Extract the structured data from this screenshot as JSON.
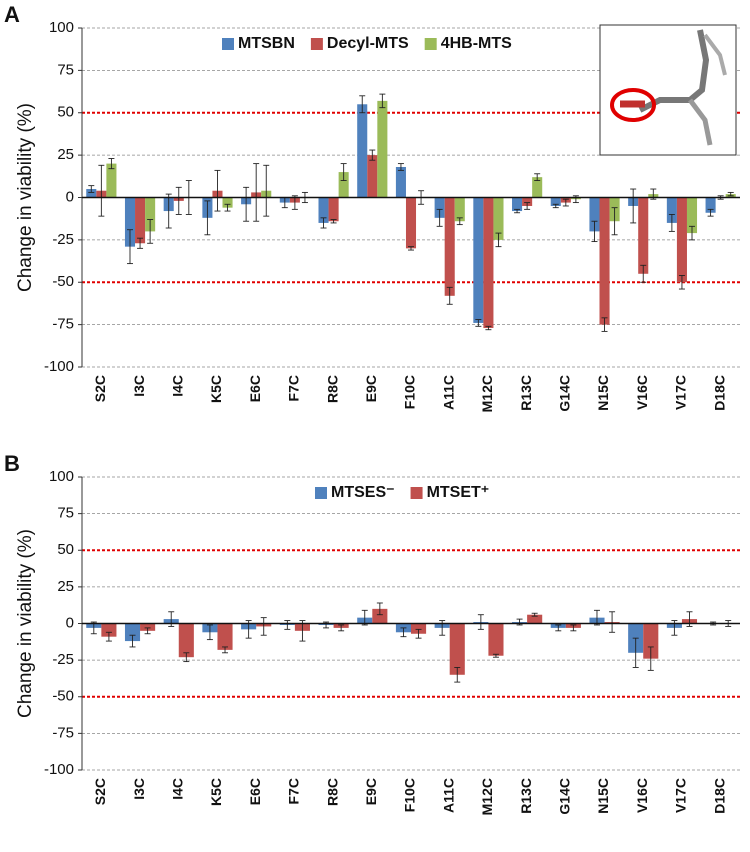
{
  "chart_data": [
    {
      "type": "bar",
      "panel_label": "A",
      "y_label": "Change in viability (%)",
      "legend": "top",
      "grid": true,
      "categories": [
        "S2C",
        "I3C",
        "I4C",
        "K5C",
        "E6C",
        "F7C",
        "R8C",
        "E9C",
        "F10C",
        "A11C",
        "M12C",
        "R13C",
        "G14C",
        "N15C",
        "V16C",
        "V17C",
        "D18C"
      ],
      "series": [
        {
          "name": "MTSBN",
          "color": "#4f81bd",
          "values": [
            5,
            -29,
            -8,
            -12,
            -4,
            -3,
            -15,
            55,
            18,
            -12,
            -74,
            -8,
            -5,
            -20,
            -5,
            -15,
            -9
          ],
          "errors": [
            2,
            10,
            10,
            10,
            10,
            3,
            3,
            5,
            2,
            5,
            2,
            1,
            1,
            6,
            10,
            5,
            2
          ]
        },
        {
          "name": "Decyl-MTS",
          "color": "#c0504d",
          "values": [
            4,
            -27,
            -2,
            4,
            3,
            -3,
            -14,
            25,
            -30,
            -58,
            -77,
            -5,
            -3,
            -75,
            -45,
            -50,
            0
          ],
          "errors": [
            15,
            3,
            8,
            12,
            17,
            4,
            1,
            3,
            1,
            5,
            1,
            2,
            2,
            4,
            5,
            4,
            1
          ]
        },
        {
          "name": "4HB-MTS",
          "color": "#9bbb59",
          "values": [
            20,
            -20,
            0,
            -6,
            4,
            0,
            15,
            57,
            0,
            -14,
            -25,
            12,
            -1,
            -14,
            2,
            -21,
            2
          ],
          "errors": [
            3,
            7,
            10,
            2,
            15,
            3,
            5,
            4,
            4,
            2,
            4,
            2,
            2,
            8,
            3,
            4,
            1
          ]
        }
      ],
      "ylim": [
        -100,
        100
      ],
      "yticks": [
        -100,
        -75,
        -50,
        -25,
        0,
        25,
        50,
        75,
        100
      ],
      "reference_lines": [
        50,
        -50
      ],
      "reference_color": "#e00000"
    },
    {
      "type": "bar",
      "panel_label": "B",
      "y_label": "Change in viability (%)",
      "legend": "top",
      "grid": true,
      "categories": [
        "S2C",
        "I3C",
        "I4C",
        "K5C",
        "E6C",
        "F7C",
        "R8C",
        "E9C",
        "F10C",
        "A11C",
        "M12C",
        "R13C",
        "G14C",
        "N15C",
        "V16C",
        "V17C",
        "D18C"
      ],
      "series": [
        {
          "name": "MTSES⁻",
          "color": "#4f81bd",
          "values": [
            -3,
            -12,
            3,
            -6,
            -4,
            -1,
            -1,
            4,
            -6,
            -3,
            1,
            1,
            -3,
            4,
            -20,
            -3,
            0
          ],
          "errors": [
            4,
            4,
            5,
            5,
            6,
            3,
            2,
            5,
            3,
            5,
            5,
            2,
            2,
            5,
            10,
            5,
            1
          ]
        },
        {
          "name": "MTSET⁺",
          "color": "#c0504d",
          "values": [
            -9,
            -5,
            -23,
            -18,
            -2,
            -5,
            -3,
            10,
            -7,
            -35,
            -22,
            6,
            -3,
            1,
            -24,
            3,
            0
          ],
          "errors": [
            3,
            2,
            3,
            2,
            6,
            7,
            2,
            4,
            3,
            5,
            1,
            1,
            2,
            7,
            8,
            5,
            2
          ]
        }
      ],
      "ylim": [
        -100,
        100
      ],
      "yticks": [
        -100,
        -75,
        -50,
        -25,
        0,
        25,
        50,
        75,
        100
      ],
      "reference_lines": [
        50,
        -50
      ],
      "reference_color": "#e00000"
    }
  ]
}
